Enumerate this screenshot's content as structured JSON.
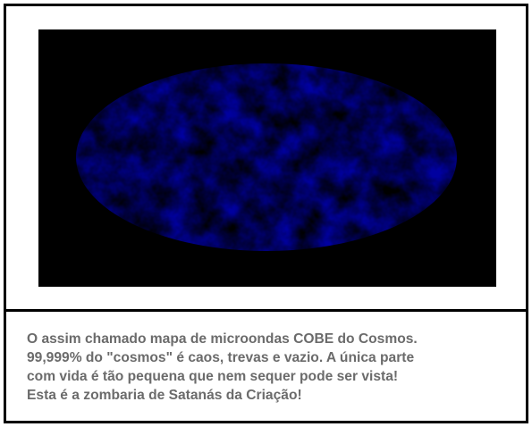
{
  "image": {
    "alt": "COBE microwave map of the cosmos"
  },
  "caption": {
    "lines": [
      "O assim chamado mapa de microondas COBE do Cosmos.",
      "99,999% do \"cosmos\" é caos, trevas e vazio. A única parte",
      "com vida é tão pequena que nem sequer pode ser vista!",
      "Esta é a zombaria de Satanás da Criação!"
    ]
  }
}
